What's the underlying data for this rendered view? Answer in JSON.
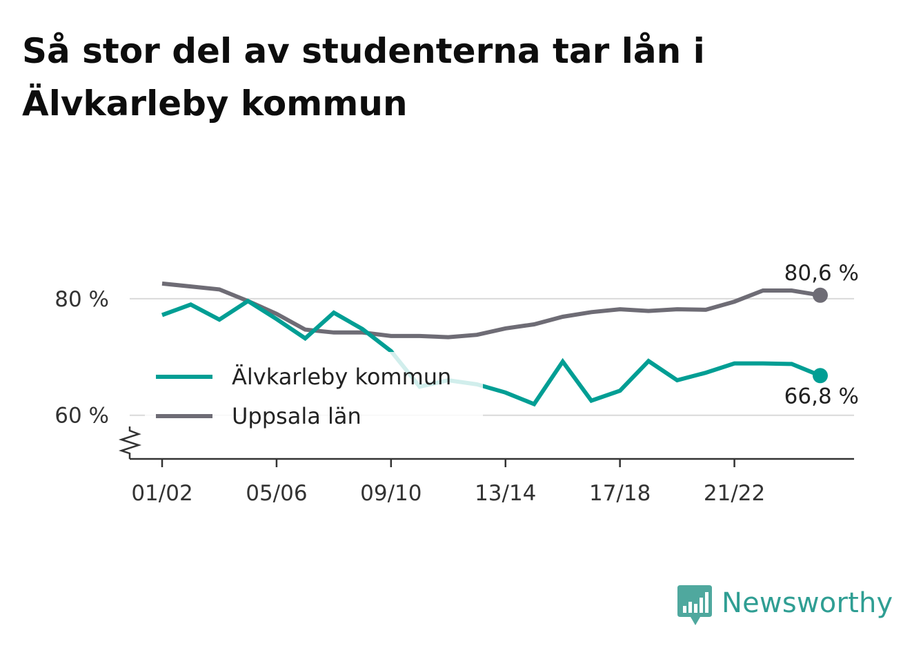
{
  "title": "Så stor del av studenterna tar lån i Älvkarleby kommun",
  "brand": {
    "name": "Newsworthy",
    "icon": "bar-chart-logo-icon",
    "color": "#2f9e93"
  },
  "chart_data": {
    "type": "line",
    "title": "Så stor del av studenterna tar lån i Älvkarleby kommun",
    "x": [
      "01/02",
      "02/03",
      "03/04",
      "04/05",
      "05/06",
      "06/07",
      "07/08",
      "08/09",
      "09/10",
      "10/11",
      "11/12",
      "12/13",
      "13/14",
      "14/15",
      "15/16",
      "16/17",
      "17/18",
      "18/19",
      "19/20",
      "20/21",
      "21/22",
      "22/23",
      "23/24",
      "24/25"
    ],
    "x_tick_labels": [
      "01/02",
      "05/06",
      "09/10",
      "13/14",
      "17/18",
      "21/22"
    ],
    "y_tick_labels": [
      "60 %",
      "80 %"
    ],
    "y_ticks": [
      60,
      80
    ],
    "ylim": [
      52.5,
      91
    ],
    "y_axis_broken": true,
    "grid": true,
    "legend_position": "middle-left",
    "series": [
      {
        "name": "Älvkarleby kommun",
        "color": "#009e94",
        "values": [
          77.2,
          79.0,
          76.4,
          79.6,
          76.5,
          73.2,
          77.6,
          74.8,
          71.0,
          64.9,
          66.0,
          65.3,
          63.9,
          61.9,
          69.2,
          62.5,
          64.2,
          69.3,
          66.0,
          67.3,
          68.9,
          68.9,
          68.8,
          66.8
        ],
        "end_label": "66,8 %"
      },
      {
        "name": "Uppsala län",
        "color": "#6e6c75",
        "values": [
          82.6,
          82.1,
          81.6,
          79.6,
          77.4,
          74.7,
          74.2,
          74.2,
          73.6,
          73.6,
          73.4,
          73.8,
          74.9,
          75.6,
          76.9,
          77.7,
          78.2,
          77.9,
          78.2,
          78.1,
          79.5,
          81.4,
          81.4,
          80.6
        ],
        "end_label": "80,6 %"
      }
    ]
  }
}
